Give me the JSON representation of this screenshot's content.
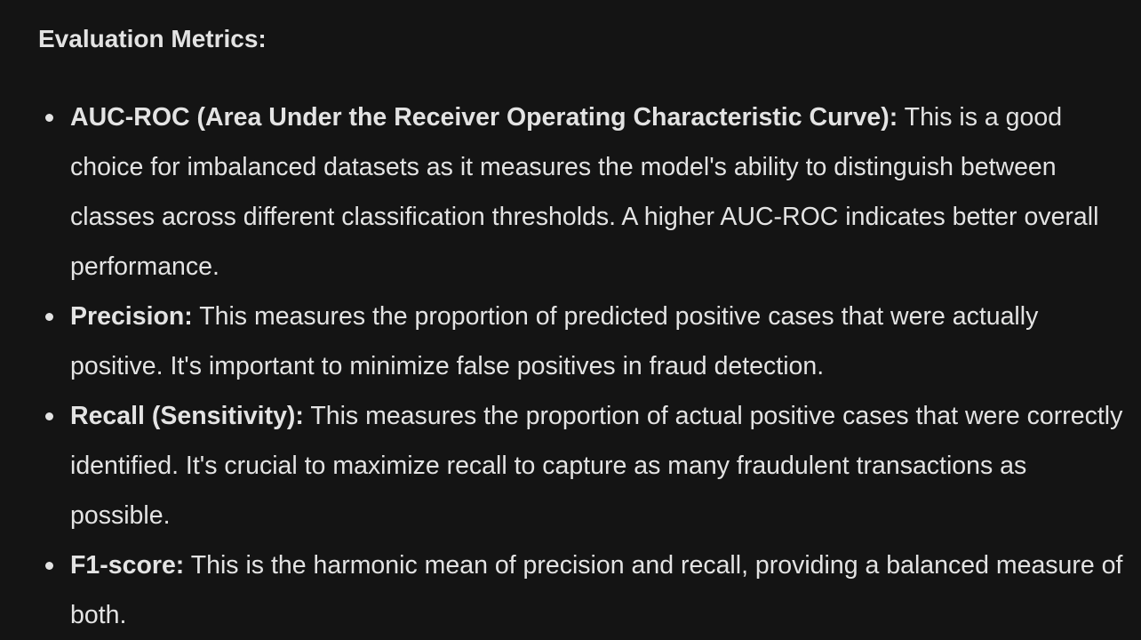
{
  "section": {
    "title": "Evaluation Metrics:"
  },
  "metrics": [
    {
      "term": "AUC-ROC (Area Under the Receiver Operating Characteristic Curve):",
      "description": "This is a good choice for imbalanced datasets as it measures the model's ability to distinguish between classes across different classification thresholds. A higher AUC-ROC indicates better overall performance."
    },
    {
      "term": "Precision:",
      "description": "This measures the proportion of predicted positive cases that were actually positive. It's important to minimize false positives in fraud detection."
    },
    {
      "term": "Recall (Sensitivity):",
      "description": "This measures the proportion of actual positive cases that were correctly identified. It's crucial to maximize recall to capture as many fraudulent transactions as possible."
    },
    {
      "term": "F1-score:",
      "description": "This is the harmonic mean of precision and recall, providing a balanced measure of both."
    }
  ]
}
